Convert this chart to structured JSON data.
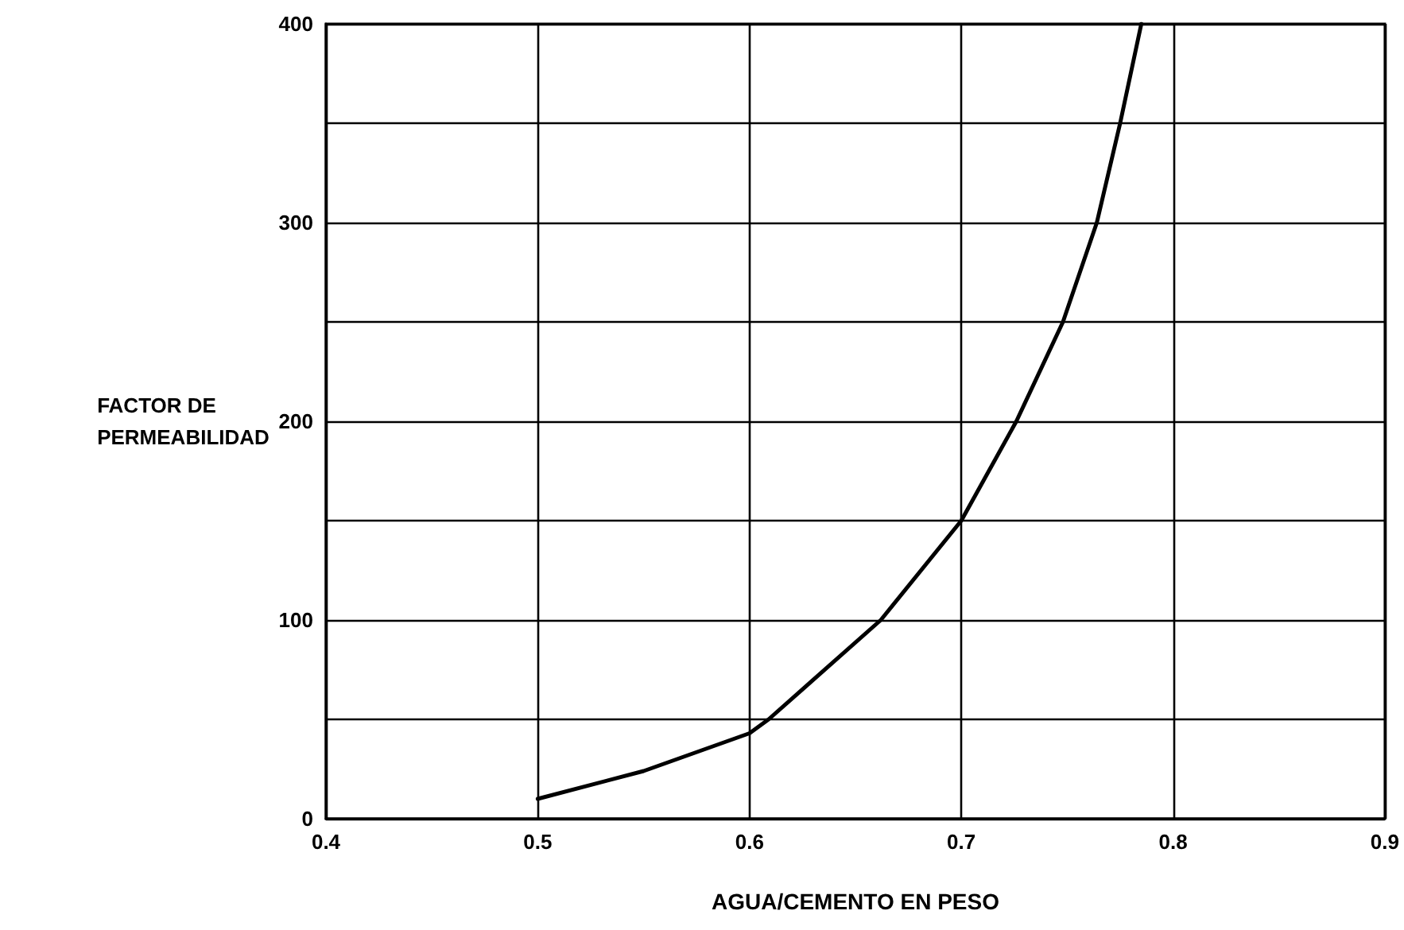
{
  "chart_data": {
    "type": "line",
    "xlabel": "AGUA/CEMENTO EN PESO",
    "ylabel": "FACTOR DE\nPERMEABILIDAD",
    "x": [
      0.5,
      0.55,
      0.6,
      0.609,
      0.662,
      0.7,
      0.726,
      0.748,
      0.764,
      0.775,
      0.785
    ],
    "series": [
      {
        "color": "#000000",
        "values": [
          10,
          24,
          43,
          50,
          100,
          150,
          200,
          250,
          300,
          350,
          400
        ]
      }
    ],
    "xlim": [
      0.4,
      0.9
    ],
    "xticks": [
      0.4,
      0.5,
      0.6,
      0.7,
      0.8,
      0.9
    ],
    "ylim": [
      0,
      400
    ],
    "yticks": [
      0,
      {
        "value": 50,
        "label": null
      },
      100,
      {
        "value": 150,
        "label": null
      },
      200,
      {
        "value": 250,
        "label": null
      },
      300,
      {
        "value": 350,
        "label": null
      },
      400
    ],
    "grid": true,
    "marker": "none",
    "line_style": "solid"
  }
}
